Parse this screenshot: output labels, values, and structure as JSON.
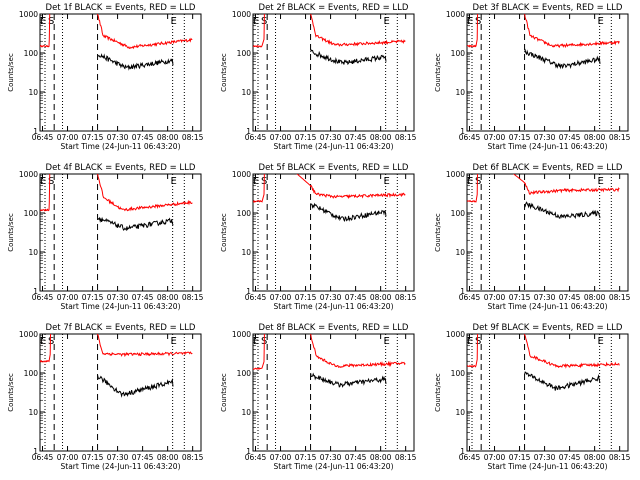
{
  "chart_data": {
    "type": "line",
    "layout": "3x3 grid",
    "panel_titles": [
      "Det 1f BLACK = Events, RED = LLD",
      "Det 2f BLACK = Events, RED = LLD",
      "Det 3f BLACK = Events, RED = LLD",
      "Det 4f BLACK = Events, RED = LLD",
      "Det 5f BLACK = Events, RED = LLD",
      "Det 6f BLACK = Events, RED = LLD",
      "Det 7f BLACK = Events, RED = LLD",
      "Det 8f BLACK = Events, RED = LLD",
      "Det 9f BLACK = Events, RED = LLD"
    ],
    "xlabel": "Start Time (24-Jun-11 06:43:20)",
    "ylabel": "Counts/sec",
    "x_ticks": [
      "06:45",
      "07:00",
      "07:15",
      "07:30",
      "07:45",
      "08:00",
      "08:15"
    ],
    "x_range_minutes": [
      -1.5,
      95
    ],
    "y_ticks": [
      "1",
      "10",
      "100",
      "1000"
    ],
    "y_scale": "log",
    "ylim": [
      1,
      1000
    ],
    "markers": {
      "label_E": "E",
      "label_S": "S",
      "dashed_lines_minutes": [
        7,
        33
      ],
      "dotted_lines_minutes": [
        1.5,
        12,
        78,
        85
      ]
    },
    "series": [
      {
        "name": "Events",
        "color": "#000000"
      },
      {
        "name": "LLD",
        "color": "#ff0000"
      }
    ],
    "panels": [
      {
        "lld": {
          "pre": 150,
          "peak_min": 4.5,
          "post_decay_start": 1000,
          "end": 220,
          "min": 140,
          "min_at": 52
        },
        "events": {
          "start": 95,
          "min": 42,
          "min_at": 50,
          "end": 65,
          "end_at": 78
        }
      },
      {
        "lld": {
          "pre": 150,
          "peak_min": 5.5,
          "post_decay_start": 1000,
          "end": 200,
          "min": 160,
          "min_at": 48
        },
        "events": {
          "start": 110,
          "min": 55,
          "min_at": 52,
          "end": 80,
          "end_at": 78
        }
      },
      {
        "lld": {
          "pre": 150,
          "peak_min": 5,
          "post_decay_start": 1000,
          "end": 190,
          "min": 150,
          "min_at": 50
        },
        "events": {
          "start": 110,
          "min": 45,
          "min_at": 55,
          "end": 70,
          "end_at": 78
        }
      },
      {
        "lld": {
          "pre": 120,
          "peak_min": 4.5,
          "post_decay_start": 1000,
          "end": 190,
          "min": 120,
          "min_at": 48
        },
        "events": {
          "start": 75,
          "min": 40,
          "min_at": 50,
          "end": 65,
          "end_at": 78
        }
      },
      {
        "lld": {
          "pre": 200,
          "peak_min": 5.5,
          "post_decay_start": 500,
          "end": 300,
          "min": 260,
          "min_at": 48
        },
        "events": {
          "start": 170,
          "min": 70,
          "min_at": 52,
          "end": 110,
          "end_at": 78
        }
      },
      {
        "lld": {
          "pre": 200,
          "peak_min": 5,
          "post_decay_start": 600,
          "end": 400,
          "min": 380,
          "min_at": 55
        },
        "events": {
          "start": 175,
          "min": 80,
          "min_at": 55,
          "end": 100,
          "end_at": 78
        }
      },
      {
        "lld": {
          "pre": 200,
          "peak_min": 5,
          "post_decay_start": 1000,
          "end": 320,
          "min": 300,
          "min_at": 48
        },
        "events": {
          "start": 85,
          "min": 28,
          "min_at": 48,
          "end": 60,
          "end_at": 78
        }
      },
      {
        "lld": {
          "pre": 130,
          "peak_min": 5.5,
          "post_decay_start": 1000,
          "end": 180,
          "min": 150,
          "min_at": 48
        },
        "events": {
          "start": 90,
          "min": 50,
          "min_at": 50,
          "end": 70,
          "end_at": 78
        }
      },
      {
        "lld": {
          "pre": 150,
          "peak_min": 5,
          "post_decay_start": 1000,
          "end": 170,
          "min": 150,
          "min_at": 52
        },
        "events": {
          "start": 100,
          "min": 40,
          "min_at": 52,
          "end": 75,
          "end_at": 78
        }
      }
    ]
  }
}
